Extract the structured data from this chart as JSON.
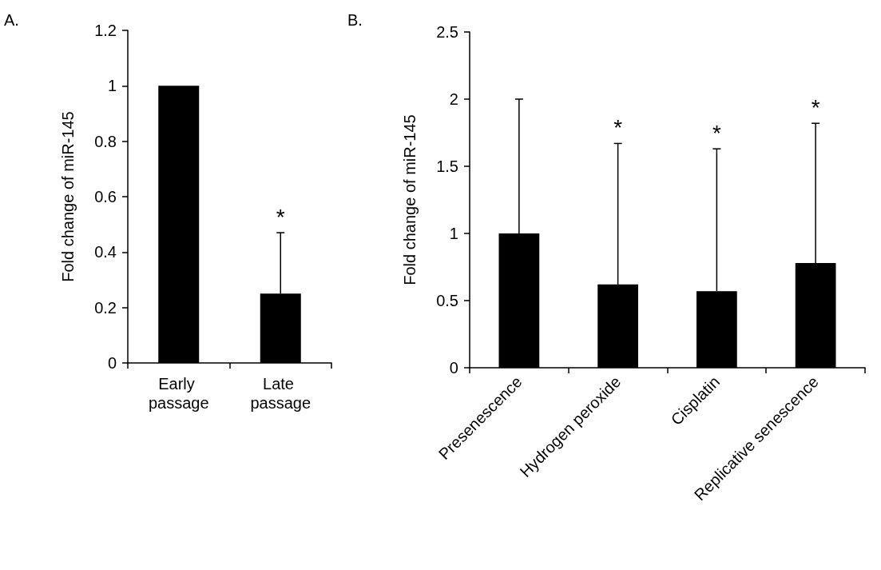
{
  "chart_data": [
    {
      "type": "bar",
      "title": "A.",
      "ylabel": "Fold change of miR-145",
      "categories": [
        "Early passage",
        "Late passage"
      ],
      "values": [
        1.0,
        0.25
      ],
      "color": "#000000",
      "errors": [
        null,
        [
          0.25,
          0.47
        ]
      ],
      "ylim": [
        0,
        1.2
      ],
      "yticks": [
        0,
        0.2,
        0.4,
        0.6,
        0.8,
        1,
        1.2
      ],
      "grid": false,
      "annotations": [
        {
          "text": "*",
          "x": "Late passage",
          "y": 0.47
        }
      ]
    },
    {
      "type": "bar",
      "title": "B.",
      "ylabel": "Fold change of miR-145",
      "categories": [
        "Presenescence",
        "Hydrogen peroxide",
        "Cisplatin",
        "Replicative senescence"
      ],
      "values": [
        1.0,
        0.62,
        0.57,
        0.78
      ],
      "color": "#000000",
      "errors": [
        [
          1.0,
          2.0
        ],
        [
          0.62,
          1.67
        ],
        [
          0.57,
          1.63
        ],
        [
          0.78,
          1.82
        ]
      ],
      "ylim": [
        0,
        2.5
      ],
      "yticks": [
        0,
        0.5,
        1,
        1.5,
        2,
        2.5
      ],
      "grid": false,
      "annotations": [
        {
          "text": "*",
          "x": "Hydrogen peroxide",
          "y": 1.67
        },
        {
          "text": "*",
          "x": "Cisplatin",
          "y": 1.63
        },
        {
          "text": "*",
          "x": "Replicative senescence",
          "y": 1.82
        }
      ]
    }
  ]
}
